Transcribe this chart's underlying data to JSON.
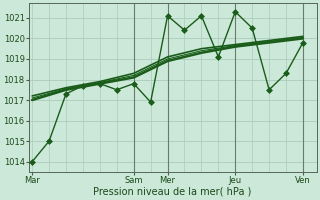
{
  "background_color": "#cce8d8",
  "grid_color": "#aaccbb",
  "line_color": "#1a5c1a",
  "ylim": [
    1013.5,
    1021.7
  ],
  "yticks": [
    1014,
    1015,
    1016,
    1017,
    1018,
    1019,
    1020,
    1021
  ],
  "xlabel": "Pression niveau de la mer( hPa )",
  "xtick_labels": [
    "Mar",
    "Sam",
    "Mer",
    "Jeu",
    "Ven"
  ],
  "xtick_positions": [
    0,
    3,
    4,
    6,
    8
  ],
  "series_jagged": {
    "x": [
      0,
      0.5,
      1.0,
      1.5,
      2.0,
      2.5,
      3.0,
      3.5,
      4.0,
      4.5,
      5.0,
      5.5,
      6.0,
      6.5,
      7.0,
      7.5,
      8.0
    ],
    "y": [
      1014.0,
      1015.0,
      1017.3,
      1017.7,
      1017.8,
      1017.5,
      1017.8,
      1016.9,
      1021.1,
      1020.4,
      1021.1,
      1019.1,
      1021.3,
      1020.5,
      1017.5,
      1018.3,
      1019.8
    ],
    "marker": "D",
    "markersize": 3,
    "linewidth": 1.0
  },
  "series_smooth": [
    {
      "x": [
        0,
        1,
        2,
        3,
        4,
        5,
        6,
        7,
        8
      ],
      "y": [
        1017.0,
        1017.5,
        1017.8,
        1018.1,
        1018.9,
        1019.3,
        1019.6,
        1019.8,
        1020.0
      ],
      "linewidth": 1.8
    },
    {
      "x": [
        0,
        1,
        2,
        3,
        4,
        5,
        6,
        7,
        8
      ],
      "y": [
        1017.2,
        1017.6,
        1017.9,
        1018.3,
        1019.1,
        1019.5,
        1019.7,
        1019.9,
        1020.1
      ],
      "linewidth": 1.2
    },
    {
      "x": [
        0,
        1,
        2,
        3,
        4,
        5,
        6,
        7,
        8
      ],
      "y": [
        1017.1,
        1017.55,
        1017.85,
        1018.2,
        1019.0,
        1019.4,
        1019.65,
        1019.85,
        1020.05
      ],
      "linewidth": 0.8
    }
  ],
  "vlines": [
    3,
    4,
    6,
    8
  ],
  "vline_color": "#556655",
  "tick_label_fontsize": 6,
  "xlabel_fontsize": 7,
  "ytick_fontsize": 6
}
